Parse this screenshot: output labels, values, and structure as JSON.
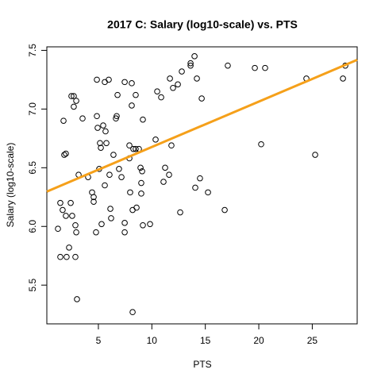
{
  "chart_data": {
    "type": "scatter",
    "title": "2017 C: Salary (log10-scale) vs. PTS",
    "xlabel": "PTS",
    "ylabel": "Salary (log10-scale)",
    "xlim": [
      0.18,
      29.2
    ],
    "ylim": [
      5.17,
      7.53
    ],
    "xticks": [
      5,
      10,
      15,
      20,
      25
    ],
    "yticks": [
      5.5,
      {
        "value": 6,
        "label": "6.0"
      },
      6.5,
      {
        "value": 7,
        "label": "7.0"
      },
      7.5
    ],
    "series": [
      {
        "color": "#000000",
        "x": [
          1.22,
          1.44,
          1.44,
          1.66,
          1.74,
          1.81,
          1.96,
          1.96,
          2.03,
          2.26,
          2.41,
          2.55,
          2.48,
          2.7,
          2.7,
          2.93,
          2.85,
          2.93,
          2.85,
          3.0,
          3.15,
          3.52,
          4.04,
          4.41,
          4.56,
          4.56,
          4.78,
          4.86,
          4.86,
          4.93,
          5.08,
          5.15,
          5.23,
          5.3,
          5.45,
          5.6,
          5.6,
          5.67,
          5.75,
          5.97,
          6.04,
          6.12,
          6.19,
          6.41,
          6.64,
          6.71,
          6.79,
          6.93,
          7.16,
          7.46,
          7.46,
          7.46,
          7.9,
          7.9,
          7.97,
          8.12,
          8.12,
          8.2,
          8.2,
          8.27,
          8.49,
          8.49,
          8.57,
          8.79,
          8.94,
          9.09,
          9.01,
          9.01,
          9.16,
          9.16,
          9.83,
          10.35,
          10.5,
          10.87,
          11.09,
          11.24,
          11.61,
          11.83,
          11.69,
          11.98,
          12.43,
          12.65,
          12.8,
          13.62,
          13.62,
          13.99,
          14.06,
          14.21,
          14.5,
          14.66,
          15.25,
          16.81,
          17.1,
          19.63,
          20.22,
          20.59,
          24.45,
          25.27,
          27.87,
          28.09
        ],
        "values": [
          5.98,
          6.2,
          5.74,
          6.14,
          6.9,
          6.61,
          6.62,
          6.09,
          5.74,
          5.82,
          6.2,
          6.09,
          7.11,
          7.11,
          7.02,
          7.07,
          6.01,
          5.95,
          5.74,
          5.38,
          6.44,
          6.92,
          6.42,
          6.29,
          6.25,
          6.21,
          5.95,
          7.25,
          6.94,
          6.84,
          6.49,
          6.71,
          6.67,
          6.02,
          6.86,
          6.35,
          7.23,
          6.81,
          6.71,
          7.25,
          6.44,
          6.15,
          6.07,
          6.61,
          6.92,
          6.94,
          7.12,
          6.49,
          6.42,
          6.03,
          5.95,
          7.23,
          6.69,
          6.58,
          6.29,
          7.22,
          7.03,
          6.14,
          5.27,
          6.66,
          7.12,
          6.66,
          6.16,
          6.66,
          6.5,
          6.47,
          6.37,
          6.28,
          6.91,
          6.01,
          6.02,
          6.74,
          7.15,
          7.1,
          6.38,
          6.5,
          6.44,
          6.69,
          7.26,
          7.18,
          7.21,
          6.12,
          7.32,
          7.37,
          7.39,
          7.45,
          6.33,
          7.26,
          6.41,
          7.09,
          6.29,
          6.14,
          7.37,
          7.35,
          6.7,
          7.35,
          7.26,
          6.61,
          7.26,
          7.37
        ]
      }
    ],
    "fit": {
      "color": "#f5a01a",
      "x": [
        0.18,
        29.2
      ],
      "values": [
        6.297,
        7.419
      ]
    }
  }
}
